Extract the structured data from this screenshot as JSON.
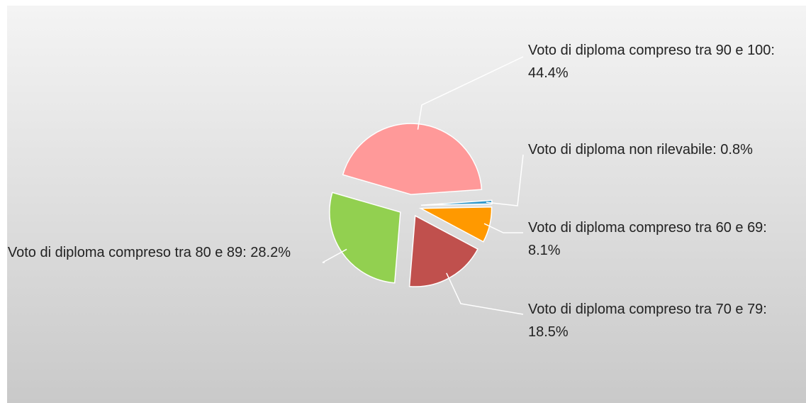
{
  "chart_data": {
    "type": "pie",
    "categories": [
      "Voto di diploma non rilevabile: 0.8%",
      "Voto di diploma compreso tra 60 e 69: 8.1%",
      "Voto di diploma compreso tra 70 e 79: 18.5%",
      "Voto di diploma compreso tra 80 e 89: 28.2%",
      "Voto di diploma compreso tra 90 e 100: 44.4%"
    ],
    "values": [
      0.8,
      8.1,
      18.5,
      28.2,
      44.4
    ],
    "colors": [
      "#3399cc",
      "#ff9900",
      "#c0504d",
      "#92d050",
      "#ff9999"
    ]
  }
}
